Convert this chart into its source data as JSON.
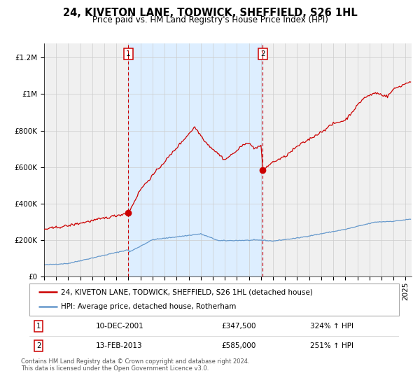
{
  "title": "24, KIVETON LANE, TODWICK, SHEFFIELD, S26 1HL",
  "subtitle": "Price paid vs. HM Land Registry's House Price Index (HPI)",
  "ylabel_ticks": [
    "£0",
    "£200K",
    "£400K",
    "£600K",
    "£800K",
    "£1M",
    "£1.2M"
  ],
  "ytick_values": [
    0,
    200000,
    400000,
    600000,
    800000,
    1000000,
    1200000
  ],
  "ylim": [
    0,
    1280000
  ],
  "xlim_start": 1995.0,
  "xlim_end": 2025.5,
  "shaded_region": [
    2002.0,
    2013.15
  ],
  "vline1_x": 2002.0,
  "vline2_x": 2013.15,
  "marker1_x": 2002.0,
  "marker1_y": 347500,
  "marker2_x": 2013.15,
  "marker2_y": 585000,
  "legend_line1": "24, KIVETON LANE, TODWICK, SHEFFIELD, S26 1HL (detached house)",
  "legend_line2": "HPI: Average price, detached house, Rotherham",
  "table_row1": [
    "1",
    "10-DEC-2001",
    "£347,500",
    "324% ↑ HPI"
  ],
  "table_row2": [
    "2",
    "13-FEB-2013",
    "£585,000",
    "251% ↑ HPI"
  ],
  "footer1": "Contains HM Land Registry data © Crown copyright and database right 2024.",
  "footer2": "This data is licensed under the Open Government Licence v3.0.",
  "line_color_red": "#cc0000",
  "line_color_blue": "#6699cc",
  "shaded_color": "#ddeeff",
  "vline_color": "#cc0000",
  "background_color": "#f0f0f0",
  "grid_color": "#cccccc",
  "title_fontsize": 10.5,
  "subtitle_fontsize": 8.5,
  "axis_fontsize": 7.5
}
